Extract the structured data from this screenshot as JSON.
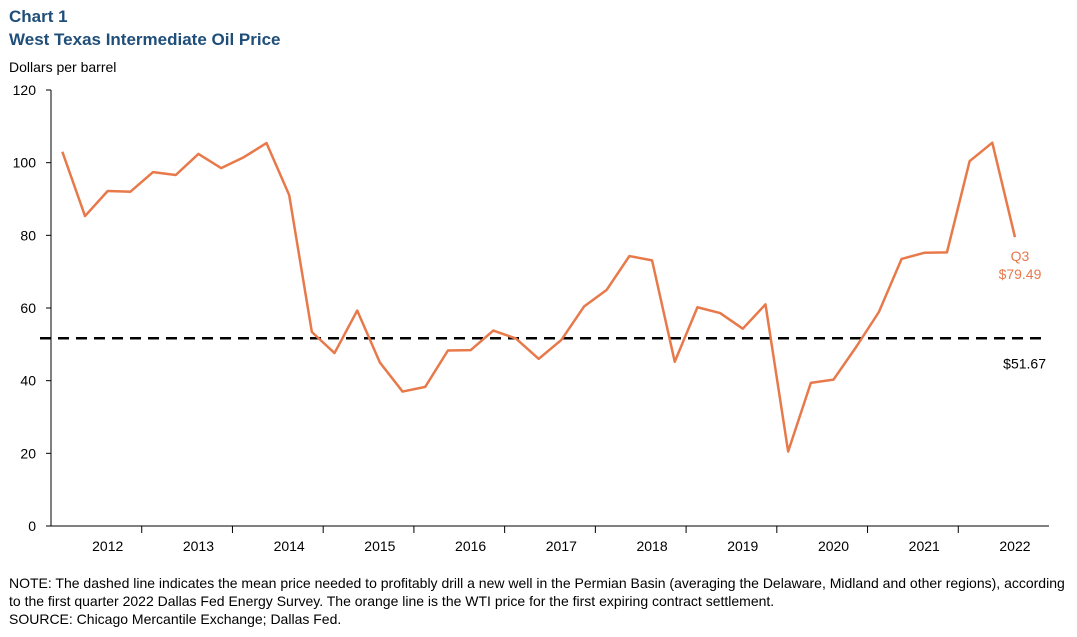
{
  "chart_data": {
    "type": "line",
    "title": "Chart 1",
    "subtitle": "West Texas Intermediate  Oil Price",
    "ylabel": "Dollars  per barrel",
    "categories": [
      null,
      null,
      "2012",
      null,
      null,
      null,
      "2013",
      null,
      null,
      null,
      "2014",
      null,
      null,
      null,
      "2015",
      null,
      null,
      null,
      "2016",
      null,
      null,
      null,
      "2017",
      null,
      null,
      null,
      "2018",
      null,
      null,
      null,
      "2019",
      null,
      null,
      null,
      "2020",
      null,
      null,
      null,
      "2021",
      null,
      null,
      null,
      "2022"
    ],
    "series": [
      {
        "name": "WTI price",
        "color": "#e8794a",
        "values": [
          103.0,
          85.3,
          92.2,
          92.0,
          97.4,
          96.6,
          102.4,
          98.5,
          101.5,
          105.4,
          91.1,
          53.4,
          47.6,
          59.3,
          45.0,
          37.0,
          38.3,
          48.3,
          48.4,
          53.8,
          51.6,
          46.0,
          51.2,
          60.4,
          65.0,
          74.3,
          73.1,
          45.2,
          60.2,
          58.6,
          54.3,
          61.0,
          20.5,
          39.4,
          40.3,
          49.3,
          58.9,
          73.5,
          75.2,
          75.3,
          100.4,
          105.5,
          79.49
        ],
        "value_labels": [
          null,
          null,
          null,
          null,
          null,
          null,
          null,
          null,
          null,
          null,
          null,
          null,
          null,
          null,
          null,
          null,
          null,
          null,
          null,
          null,
          null,
          null,
          null,
          null,
          null,
          null,
          null,
          null,
          null,
          null,
          null,
          null,
          null,
          null,
          null,
          null,
          null,
          null,
          null,
          null,
          null,
          null,
          "$79.49"
        ]
      }
    ],
    "annotation": "Q3",
    "reference_line": {
      "value": 51.67,
      "label": "$51.67",
      "color": "#000000",
      "dashed": true
    },
    "ylim": [
      0,
      120
    ],
    "yticks": [
      0,
      20,
      40,
      60,
      80,
      100,
      120
    ],
    "grid": false,
    "note": "NOTE: The dashed line indicates the mean price needed to profitably drill a new well in the Permian Basin (averaging the Delaware, Midland and other regions), according to the first quarter 2022 Dallas Fed Energy Survey.  The orange line is the WTI price for the first expiring contract settlement.",
    "source": "SOURCE: Chicago Mercantile Exchange;  Dallas Fed."
  }
}
